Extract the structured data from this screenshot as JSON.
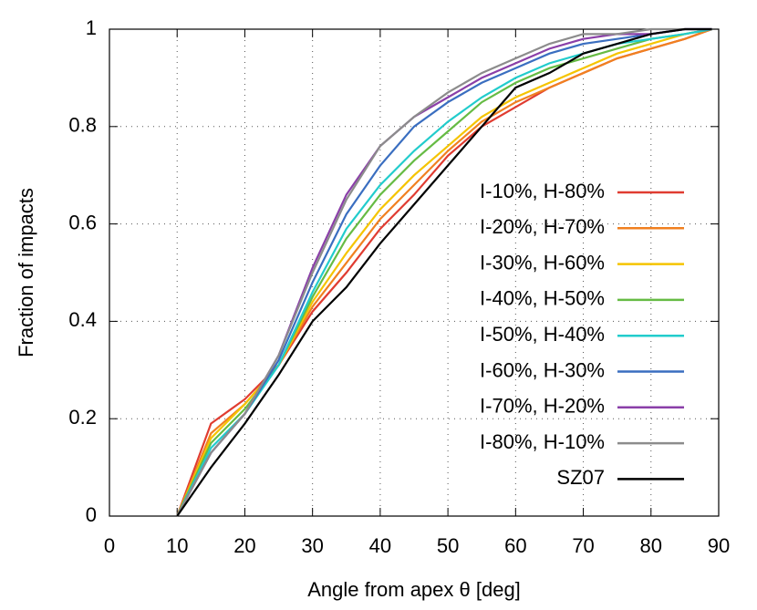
{
  "chart_data": {
    "type": "line",
    "x_label": "Angle from apex θ [deg]",
    "y_label": "Fraction of impacts",
    "x": [
      10,
      15,
      20,
      25,
      30,
      35,
      40,
      45,
      50,
      55,
      60,
      65,
      70,
      75,
      80,
      85,
      89
    ],
    "series": [
      {
        "name": "I-10%, H-80%",
        "color": "#e03c31",
        "values": [
          0,
          0.19,
          0.24,
          0.31,
          0.42,
          0.5,
          0.59,
          0.66,
          0.74,
          0.8,
          0.84,
          0.88,
          0.91,
          0.94,
          0.96,
          0.98,
          1
        ]
      },
      {
        "name": "I-20%, H-70%",
        "color": "#f08020",
        "values": [
          0,
          0.17,
          0.23,
          0.31,
          0.43,
          0.52,
          0.61,
          0.68,
          0.75,
          0.81,
          0.85,
          0.88,
          0.91,
          0.94,
          0.96,
          0.98,
          1
        ]
      },
      {
        "name": "I-30%, H-60%",
        "color": "#f5c400",
        "values": [
          0,
          0.16,
          0.23,
          0.31,
          0.44,
          0.54,
          0.63,
          0.7,
          0.76,
          0.82,
          0.86,
          0.89,
          0.92,
          0.95,
          0.97,
          0.99,
          1
        ]
      },
      {
        "name": "I-40%, H-50%",
        "color": "#66bb44",
        "values": [
          0,
          0.15,
          0.22,
          0.31,
          0.45,
          0.57,
          0.66,
          0.73,
          0.79,
          0.85,
          0.89,
          0.92,
          0.94,
          0.96,
          0.98,
          0.99,
          1
        ]
      },
      {
        "name": "I-50%, H-40%",
        "color": "#22cccc",
        "values": [
          0,
          0.14,
          0.21,
          0.31,
          0.46,
          0.59,
          0.68,
          0.75,
          0.81,
          0.86,
          0.9,
          0.93,
          0.95,
          0.97,
          0.98,
          0.99,
          1
        ]
      },
      {
        "name": "I-60%, H-30%",
        "color": "#3a6ec0",
        "values": [
          0,
          0.13,
          0.21,
          0.32,
          0.48,
          0.62,
          0.72,
          0.8,
          0.85,
          0.89,
          0.92,
          0.95,
          0.97,
          0.98,
          0.99,
          1,
          1
        ]
      },
      {
        "name": "I-70%, H-20%",
        "color": "#8a3fa8",
        "values": [
          0,
          0.13,
          0.21,
          0.33,
          0.51,
          0.66,
          0.76,
          0.82,
          0.86,
          0.9,
          0.93,
          0.96,
          0.98,
          0.99,
          0.99,
          1,
          1
        ]
      },
      {
        "name": "I-80%, H-10%",
        "color": "#8c8c8c",
        "values": [
          0,
          0.13,
          0.21,
          0.33,
          0.5,
          0.65,
          0.76,
          0.82,
          0.87,
          0.91,
          0.94,
          0.97,
          0.99,
          0.99,
          1,
          1,
          1
        ]
      },
      {
        "name": "SZ07",
        "color": "#000000",
        "values": [
          0,
          0.1,
          0.19,
          0.29,
          0.4,
          0.47,
          0.56,
          0.64,
          0.72,
          0.8,
          0.88,
          0.91,
          0.95,
          0.97,
          0.99,
          1,
          1
        ]
      }
    ],
    "xlim": [
      0,
      90
    ],
    "xticks": [
      0,
      10,
      20,
      30,
      40,
      50,
      60,
      70,
      80,
      90
    ],
    "ylim": [
      0,
      1
    ],
    "yticks": [
      0,
      0.2,
      0.4,
      0.6,
      0.8,
      1
    ],
    "grid": true,
    "legend": "right"
  }
}
